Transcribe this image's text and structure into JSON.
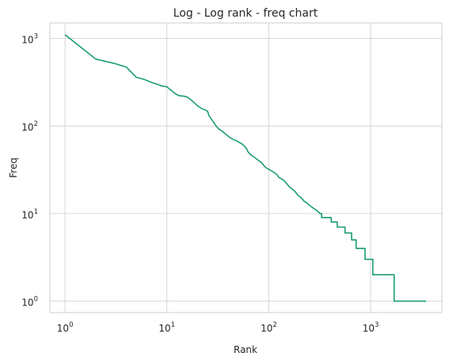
{
  "chart_data": {
    "type": "line",
    "title": "Log - Log rank - freq chart",
    "xlabel": "Rank",
    "ylabel": "Freq",
    "xscale": "log",
    "yscale": "log",
    "xlim": [
      0.71,
      5000
    ],
    "ylim": [
      0.74,
      1500
    ],
    "grid": true,
    "xticks": [
      {
        "value": 1,
        "base": "10",
        "exp": "0"
      },
      {
        "value": 10,
        "base": "10",
        "exp": "1"
      },
      {
        "value": 100,
        "base": "10",
        "exp": "2"
      },
      {
        "value": 1000,
        "base": "10",
        "exp": "3"
      }
    ],
    "yticks": [
      {
        "value": 1,
        "base": "10",
        "exp": "0"
      },
      {
        "value": 10,
        "base": "10",
        "exp": "1"
      },
      {
        "value": 100,
        "base": "10",
        "exp": "2"
      },
      {
        "value": 1000,
        "base": "10",
        "exp": "3"
      }
    ],
    "series": [
      {
        "color": "#1a9c76",
        "points": [
          [
            1,
            1100
          ],
          [
            2,
            580
          ],
          [
            3,
            520
          ],
          [
            4,
            470
          ],
          [
            5,
            360
          ],
          [
            6,
            340
          ],
          [
            7,
            315
          ],
          [
            8,
            300
          ],
          [
            9,
            285
          ],
          [
            10,
            280
          ],
          [
            11,
            255
          ],
          [
            12,
            235
          ],
          [
            13,
            222
          ],
          [
            15,
            218
          ],
          [
            16,
            212
          ],
          [
            17,
            200
          ],
          [
            18,
            190
          ],
          [
            20,
            170
          ],
          [
            22,
            158
          ],
          [
            25,
            148
          ],
          [
            26,
            130
          ],
          [
            28,
            115
          ],
          [
            30,
            102
          ],
          [
            32,
            93
          ],
          [
            35,
            87
          ],
          [
            38,
            80
          ],
          [
            42,
            73
          ],
          [
            45,
            70
          ],
          [
            48,
            68
          ],
          [
            50,
            66
          ],
          [
            55,
            62
          ],
          [
            60,
            56
          ],
          [
            63,
            50
          ],
          [
            68,
            46
          ],
          [
            72,
            44
          ],
          [
            80,
            40
          ],
          [
            85,
            38
          ],
          [
            90,
            35
          ],
          [
            95,
            33
          ],
          [
            100,
            32
          ],
          [
            110,
            30
          ],
          [
            120,
            28
          ],
          [
            125,
            26
          ],
          [
            140,
            24
          ],
          [
            150,
            22
          ],
          [
            160,
            20
          ],
          [
            170,
            19
          ],
          [
            180,
            18
          ],
          [
            195,
            16
          ],
          [
            210,
            15
          ],
          [
            220,
            14
          ],
          [
            240,
            13
          ],
          [
            260,
            12
          ],
          [
            290,
            11
          ],
          [
            320,
            10
          ],
          [
            330,
            10
          ],
          [
            330,
            9
          ],
          [
            410,
            9
          ],
          [
            410,
            8
          ],
          [
            470,
            8
          ],
          [
            470,
            7
          ],
          [
            560,
            7
          ],
          [
            560,
            6
          ],
          [
            650,
            6
          ],
          [
            650,
            5
          ],
          [
            720,
            5
          ],
          [
            720,
            4
          ],
          [
            880,
            4
          ],
          [
            880,
            3
          ],
          [
            1050,
            3
          ],
          [
            1050,
            2
          ],
          [
            1700,
            2
          ],
          [
            1700,
            1
          ],
          [
            3500,
            1
          ]
        ]
      }
    ]
  }
}
